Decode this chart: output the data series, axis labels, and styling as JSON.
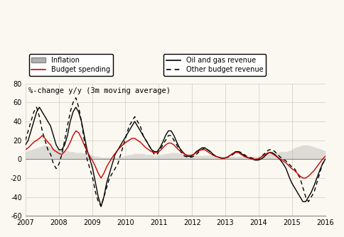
{
  "title": "%-change y/y (3m moving average)",
  "background_color": "#faf8f0",
  "ylim": [
    -60,
    80
  ],
  "xlim": [
    2007,
    2016
  ],
  "grid_color": "#d0ccc0",
  "zero_line_color": "#888888",
  "inflation": [
    8,
    9,
    10,
    11,
    12,
    13,
    14,
    15,
    14,
    13,
    12,
    11,
    10,
    10,
    9,
    9,
    8,
    8,
    7,
    7,
    7,
    6,
    6,
    5,
    4,
    3,
    3,
    2,
    2,
    2,
    2,
    2,
    2,
    2,
    2,
    3,
    4,
    5,
    5,
    6,
    6,
    6,
    6,
    5,
    5,
    5,
    4,
    4,
    5,
    5,
    6,
    6,
    7,
    7,
    7,
    6,
    6,
    5,
    5,
    5,
    5,
    4,
    4,
    4,
    4,
    4,
    4,
    3,
    3,
    3,
    3,
    3,
    3,
    3,
    3,
    3,
    3,
    3,
    3,
    3,
    3,
    3,
    3,
    3,
    4,
    5,
    6,
    6,
    7,
    7,
    7,
    8,
    8,
    8,
    9,
    10,
    12,
    13,
    14,
    15,
    15,
    15,
    14,
    13,
    12,
    11,
    10,
    9
  ],
  "budget_spending": [
    20,
    30,
    40,
    50,
    55,
    45,
    30,
    20,
    10,
    5,
    -5,
    -10,
    -5,
    5,
    20,
    35,
    50,
    60,
    65,
    55,
    40,
    20,
    0,
    -10,
    -20,
    -35,
    -45,
    -50,
    -40,
    -30,
    -20,
    -15,
    -10,
    -5,
    5,
    15,
    25,
    35,
    40,
    45,
    40,
    35,
    25,
    20,
    15,
    10,
    5,
    5,
    10,
    15,
    20,
    25,
    25,
    20,
    15,
    10,
    5,
    3,
    2,
    2,
    3,
    5,
    8,
    10,
    12,
    10,
    8,
    5,
    3,
    2,
    1,
    1,
    2,
    3,
    5,
    7,
    8,
    7,
    5,
    3,
    2,
    1,
    0,
    0,
    2,
    5,
    8,
    10,
    10,
    8,
    5,
    2,
    0,
    -2,
    -5,
    -8,
    -10,
    -15,
    -20,
    -30,
    -40,
    -45,
    -40,
    -35,
    -25,
    -15,
    -5,
    0
  ],
  "oil_gas": [
    15,
    20,
    30,
    40,
    50,
    55,
    50,
    45,
    40,
    35,
    25,
    15,
    10,
    10,
    15,
    25,
    40,
    50,
    55,
    50,
    40,
    25,
    10,
    0,
    -10,
    -25,
    -40,
    -50,
    -40,
    -25,
    -15,
    -5,
    5,
    10,
    15,
    20,
    25,
    30,
    35,
    40,
    35,
    30,
    25,
    20,
    15,
    10,
    8,
    8,
    12,
    18,
    25,
    30,
    30,
    25,
    18,
    12,
    8,
    5,
    3,
    3,
    5,
    8,
    10,
    12,
    12,
    10,
    8,
    5,
    3,
    2,
    1,
    1,
    2,
    4,
    6,
    8,
    8,
    6,
    4,
    2,
    1,
    0,
    -1,
    -1,
    0,
    2,
    5,
    7,
    7,
    5,
    2,
    -1,
    -5,
    -10,
    -18,
    -25,
    -30,
    -35,
    -40,
    -45,
    -45,
    -40,
    -35,
    -28,
    -20,
    -12,
    -5,
    0
  ],
  "other_revenue": [
    10,
    12,
    15,
    18,
    20,
    22,
    25,
    22,
    18,
    15,
    10,
    8,
    6,
    5,
    8,
    12,
    18,
    25,
    30,
    28,
    22,
    15,
    8,
    3,
    -2,
    -8,
    -15,
    -20,
    -15,
    -8,
    -3,
    2,
    6,
    10,
    13,
    16,
    18,
    20,
    22,
    22,
    20,
    18,
    15,
    12,
    10,
    8,
    7,
    7,
    9,
    12,
    15,
    17,
    17,
    15,
    12,
    9,
    7,
    5,
    4,
    4,
    5,
    7,
    9,
    10,
    10,
    8,
    6,
    4,
    3,
    2,
    1,
    1,
    2,
    4,
    6,
    7,
    7,
    5,
    3,
    2,
    1,
    0,
    0,
    0,
    2,
    4,
    6,
    7,
    6,
    4,
    2,
    0,
    -2,
    -4,
    -7,
    -10,
    -12,
    -15,
    -18,
    -20,
    -20,
    -18,
    -15,
    -12,
    -8,
    -4,
    0,
    3
  ],
  "legend1_labels": [
    "Inflation",
    "Budget spending"
  ],
  "legend2_labels": [
    "Oil and gas revenue",
    "Other budget revenue"
  ],
  "inflation_color": "#b0b0b0",
  "budget_color": "#000000",
  "oil_color": "#000000",
  "other_color": "#cc0000",
  "yticks": [
    -60,
    -40,
    -20,
    0,
    20,
    40,
    60,
    80
  ],
  "xticks": [
    2007,
    2008,
    2009,
    2010,
    2011,
    2012,
    2013,
    2014,
    2015,
    2016
  ]
}
